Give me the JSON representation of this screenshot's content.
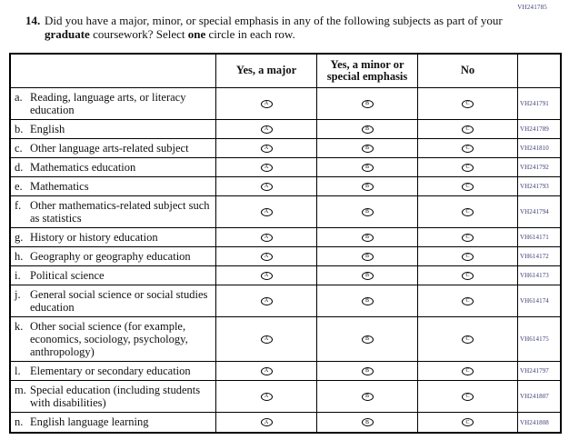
{
  "page": {
    "form_code": "VH241785",
    "colors": {
      "code_text": "#3b3b77",
      "text": "#111111",
      "border": "#000000",
      "background": "#ffffff"
    }
  },
  "question": {
    "number": "14.",
    "part1": "Did you have a major, minor, or special emphasis in any of the following subjects as part of your ",
    "bold1": "graduate",
    "part2": " coursework? Select ",
    "bold2": "one",
    "part3": " circle in each row."
  },
  "table": {
    "columns": [
      "Yes, a major",
      "Yes, a minor or special emphasis",
      "No"
    ],
    "bubble_letters": [
      "A",
      "B",
      "C"
    ],
    "rows": [
      {
        "letter": "a.",
        "label": "Reading, language arts, or literacy education",
        "code": "VH241791"
      },
      {
        "letter": "b.",
        "label": "English",
        "code": "VH241789"
      },
      {
        "letter": "c.",
        "label": "Other language arts-related subject",
        "code": "VH241810"
      },
      {
        "letter": "d.",
        "label": "Mathematics education",
        "code": "VH241792"
      },
      {
        "letter": "e.",
        "label": "Mathematics",
        "code": "VH241793"
      },
      {
        "letter": "f.",
        "label": "Other mathematics-related subject such as statistics",
        "code": "VH241794"
      },
      {
        "letter": "g.",
        "label": "History or history education",
        "code": "VH614171"
      },
      {
        "letter": "h.",
        "label": "Geography or geography education",
        "code": "VH614172"
      },
      {
        "letter": "i.",
        "label": "Political science",
        "code": "VH614173"
      },
      {
        "letter": "j.",
        "label": "General social science or social studies education",
        "code": "VH614174"
      },
      {
        "letter": "k.",
        "label": "Other social science (for example, economics, sociology, psychology, anthropology)",
        "code": "VH614175"
      },
      {
        "letter": "l.",
        "label": "Elementary or secondary education",
        "code": "VH241797"
      },
      {
        "letter": "m.",
        "label": "Special education (including students with disabilities)",
        "code": "VH241807"
      },
      {
        "letter": "n.",
        "label": "English language learning",
        "code": "VH241808"
      }
    ]
  }
}
